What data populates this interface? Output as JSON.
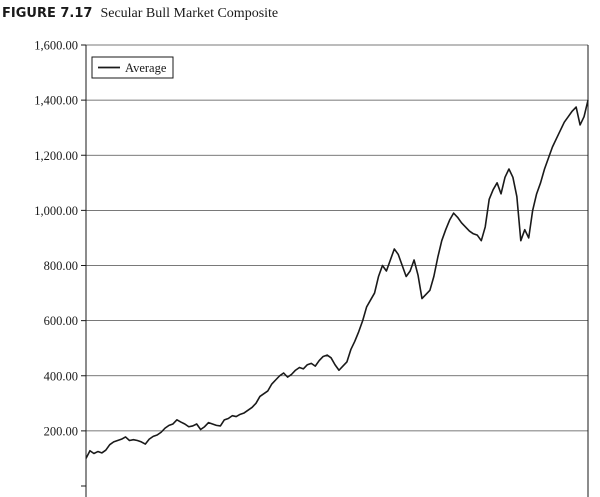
{
  "figure": {
    "number": "FIGURE 7.17",
    "title": "Secular Bull Market Composite"
  },
  "chart_data": {
    "type": "line",
    "title": "Secular Bull Market Composite",
    "xlabel": "",
    "ylabel": "",
    "ylim": [
      0,
      1600
    ],
    "yticks": [
      200,
      400,
      600,
      800,
      1000,
      1200,
      1400,
      1600
    ],
    "ytick_labels": [
      "200.00",
      "400.00",
      "600.00",
      "800.00",
      "1,000.00",
      "1,200.00",
      "1,400.00",
      "1,600.00"
    ],
    "grid": "horizontal",
    "legend": "top-left",
    "colors": {
      "line": "#1a1a1a",
      "grid": "#4d4d4d"
    },
    "series": [
      {
        "name": "Average",
        "values": [
          100,
          128,
          118,
          125,
          120,
          130,
          150,
          160,
          165,
          170,
          178,
          165,
          168,
          165,
          160,
          152,
          170,
          180,
          185,
          195,
          210,
          220,
          225,
          240,
          232,
          225,
          215,
          218,
          225,
          205,
          215,
          230,
          225,
          220,
          218,
          240,
          245,
          255,
          252,
          260,
          265,
          275,
          285,
          300,
          325,
          335,
          345,
          370,
          385,
          400,
          410,
          395,
          405,
          420,
          430,
          425,
          440,
          445,
          435,
          455,
          470,
          475,
          465,
          440,
          420,
          435,
          450,
          495,
          525,
          560,
          600,
          650,
          675,
          700,
          760,
          800,
          780,
          820,
          860,
          840,
          800,
          760,
          780,
          820,
          765,
          680,
          695,
          710,
          760,
          830,
          890,
          930,
          965,
          990,
          975,
          955,
          940,
          925,
          915,
          910,
          890,
          940,
          1040,
          1075,
          1100,
          1060,
          1120,
          1150,
          1120,
          1050,
          890,
          930,
          900,
          1000,
          1060,
          1100,
          1150,
          1190,
          1230,
          1260,
          1290,
          1320,
          1340,
          1360,
          1375,
          1310,
          1340,
          1400
        ]
      }
    ]
  }
}
